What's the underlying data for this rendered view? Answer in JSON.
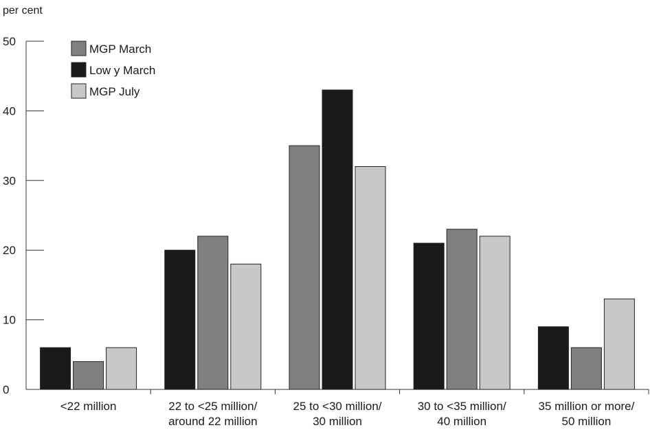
{
  "chart_data": {
    "type": "bar",
    "y_unit_label": "per cent",
    "ylim": [
      0,
      50
    ],
    "yticks": [
      0,
      10,
      20,
      30,
      40,
      50
    ],
    "grid": false,
    "legend_position": "top-left",
    "categories": [
      [
        "<22 million"
      ],
      [
        "22 to <25 million/",
        "around 22 million"
      ],
      [
        "25 to <30 million/",
        "30 million"
      ],
      [
        "30 to <35 million/",
        "40 million"
      ],
      [
        "35 million or more/",
        "50 million"
      ]
    ],
    "legend": [
      {
        "name": "MGP March",
        "color": "#808080"
      },
      {
        "name": "Low y March",
        "color": "#1a1a1a"
      },
      {
        "name": "MGP July",
        "color": "#c8c8c8"
      }
    ],
    "bars": [
      [
        {
          "value": 6,
          "color": "#1a1a1a"
        },
        {
          "value": 4,
          "color": "#808080"
        },
        {
          "value": 6,
          "color": "#c8c8c8"
        }
      ],
      [
        {
          "value": 20,
          "color": "#1a1a1a"
        },
        {
          "value": 22,
          "color": "#808080"
        },
        {
          "value": 18,
          "color": "#c8c8c8"
        }
      ],
      [
        {
          "value": 35,
          "color": "#808080"
        },
        {
          "value": 43,
          "color": "#1a1a1a"
        },
        {
          "value": 32,
          "color": "#c8c8c8"
        }
      ],
      [
        {
          "value": 21,
          "color": "#1a1a1a"
        },
        {
          "value": 23,
          "color": "#808080"
        },
        {
          "value": 22,
          "color": "#c8c8c8"
        }
      ],
      [
        {
          "value": 9,
          "color": "#1a1a1a"
        },
        {
          "value": 6,
          "color": "#808080"
        },
        {
          "value": 13,
          "color": "#c8c8c8"
        }
      ]
    ]
  }
}
